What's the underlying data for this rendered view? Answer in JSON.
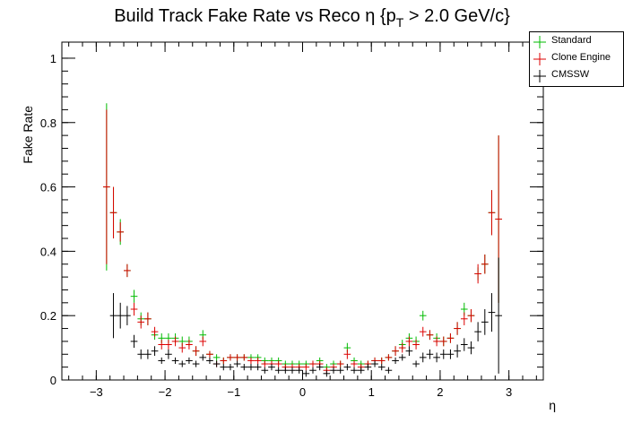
{
  "chart_data": {
    "type": "scatter",
    "title": "Build Track Fake Rate vs Reco η {p",
    "title_sub": "T",
    "title_tail": " > 2.0 GeV/c}",
    "xlabel": "η",
    "ylabel": "Fake Rate",
    "xlim": [
      -3.5,
      3.5
    ],
    "ylim": [
      0,
      1.05
    ],
    "xticks": [
      -3,
      -2,
      -1,
      0,
      1,
      2,
      3
    ],
    "xtick_labels": [
      "−3",
      "−2",
      "−1",
      "0",
      "1",
      "2",
      "3"
    ],
    "yticks": [
      0,
      0.2,
      0.4,
      0.6,
      0.8,
      1
    ],
    "ytick_labels": [
      "0",
      "0.2",
      "0.4",
      "0.6",
      "0.8",
      "1"
    ],
    "bin_half_width": 0.05,
    "legend_position": "top-right",
    "series": [
      {
        "name": "Standard",
        "color": "#00bb00",
        "points": [
          [
            -2.85,
            0.6,
            0.26
          ],
          [
            -2.75,
            0.52,
            0.08
          ],
          [
            -2.65,
            0.46,
            0.04
          ],
          [
            -2.55,
            0.34,
            0.02
          ],
          [
            -2.45,
            0.26,
            0.02
          ],
          [
            -2.35,
            0.19,
            0.02
          ],
          [
            -2.25,
            0.19,
            0.02
          ],
          [
            -2.15,
            0.14,
            0.015
          ],
          [
            -2.05,
            0.13,
            0.015
          ],
          [
            -1.95,
            0.13,
            0.015
          ],
          [
            -1.85,
            0.13,
            0.015
          ],
          [
            -1.75,
            0.12,
            0.015
          ],
          [
            -1.65,
            0.12,
            0.015
          ],
          [
            -1.55,
            0.09,
            0.015
          ],
          [
            -1.45,
            0.14,
            0.015
          ],
          [
            -1.35,
            0.08,
            0.01
          ],
          [
            -1.25,
            0.07,
            0.01
          ],
          [
            -1.15,
            0.06,
            0.01
          ],
          [
            -1.05,
            0.07,
            0.01
          ],
          [
            -0.95,
            0.07,
            0.01
          ],
          [
            -0.85,
            0.07,
            0.01
          ],
          [
            -0.75,
            0.07,
            0.01
          ],
          [
            -0.65,
            0.07,
            0.01
          ],
          [
            -0.55,
            0.06,
            0.01
          ],
          [
            -0.45,
            0.06,
            0.01
          ],
          [
            -0.35,
            0.06,
            0.01
          ],
          [
            -0.25,
            0.05,
            0.01
          ],
          [
            -0.15,
            0.05,
            0.01
          ],
          [
            -0.05,
            0.05,
            0.01
          ],
          [
            0.05,
            0.05,
            0.01
          ],
          [
            0.15,
            0.05,
            0.01
          ],
          [
            0.25,
            0.06,
            0.01
          ],
          [
            0.35,
            0.04,
            0.01
          ],
          [
            0.45,
            0.05,
            0.01
          ],
          [
            0.55,
            0.05,
            0.01
          ],
          [
            0.65,
            0.1,
            0.015
          ],
          [
            0.75,
            0.06,
            0.01
          ],
          [
            0.85,
            0.05,
            0.01
          ],
          [
            0.95,
            0.05,
            0.01
          ],
          [
            1.05,
            0.06,
            0.01
          ],
          [
            1.15,
            0.06,
            0.01
          ],
          [
            1.25,
            0.07,
            0.01
          ],
          [
            1.35,
            0.09,
            0.015
          ],
          [
            1.45,
            0.11,
            0.015
          ],
          [
            1.55,
            0.13,
            0.015
          ],
          [
            1.65,
            0.12,
            0.015
          ],
          [
            1.75,
            0.2,
            0.015
          ],
          [
            1.85,
            0.14,
            0.015
          ],
          [
            1.95,
            0.13,
            0.015
          ],
          [
            2.05,
            0.12,
            0.015
          ],
          [
            2.15,
            0.13,
            0.015
          ],
          [
            2.25,
            0.16,
            0.02
          ],
          [
            2.35,
            0.22,
            0.02
          ],
          [
            2.45,
            0.2,
            0.02
          ],
          [
            2.55,
            0.33,
            0.02
          ],
          [
            2.65,
            0.36,
            0.03
          ],
          [
            2.75,
            0.52,
            0.07
          ],
          [
            2.85,
            0.5,
            0.26
          ]
        ]
      },
      {
        "name": "Clone Engine",
        "color": "#dd0000",
        "points": [
          [
            -2.85,
            0.6,
            0.24
          ],
          [
            -2.75,
            0.52,
            0.08
          ],
          [
            -2.65,
            0.46,
            0.03
          ],
          [
            -2.55,
            0.34,
            0.02
          ],
          [
            -2.45,
            0.22,
            0.02
          ],
          [
            -2.35,
            0.18,
            0.02
          ],
          [
            -2.25,
            0.19,
            0.02
          ],
          [
            -2.15,
            0.15,
            0.015
          ],
          [
            -2.05,
            0.11,
            0.015
          ],
          [
            -1.95,
            0.11,
            0.015
          ],
          [
            -1.85,
            0.12,
            0.015
          ],
          [
            -1.75,
            0.1,
            0.015
          ],
          [
            -1.65,
            0.11,
            0.015
          ],
          [
            -1.55,
            0.09,
            0.015
          ],
          [
            -1.45,
            0.12,
            0.015
          ],
          [
            -1.35,
            0.08,
            0.01
          ],
          [
            -1.25,
            0.05,
            0.01
          ],
          [
            -1.15,
            0.06,
            0.01
          ],
          [
            -1.05,
            0.07,
            0.01
          ],
          [
            -0.95,
            0.07,
            0.01
          ],
          [
            -0.85,
            0.07,
            0.01
          ],
          [
            -0.75,
            0.06,
            0.01
          ],
          [
            -0.65,
            0.06,
            0.01
          ],
          [
            -0.55,
            0.05,
            0.01
          ],
          [
            -0.45,
            0.05,
            0.01
          ],
          [
            -0.35,
            0.05,
            0.01
          ],
          [
            -0.25,
            0.04,
            0.01
          ],
          [
            -0.15,
            0.04,
            0.01
          ],
          [
            -0.05,
            0.04,
            0.01
          ],
          [
            0.05,
            0.04,
            0.01
          ],
          [
            0.15,
            0.05,
            0.01
          ],
          [
            0.25,
            0.05,
            0.01
          ],
          [
            0.35,
            0.03,
            0.01
          ],
          [
            0.45,
            0.04,
            0.01
          ],
          [
            0.55,
            0.05,
            0.01
          ],
          [
            0.65,
            0.08,
            0.015
          ],
          [
            0.75,
            0.05,
            0.01
          ],
          [
            0.85,
            0.04,
            0.01
          ],
          [
            0.95,
            0.05,
            0.01
          ],
          [
            1.05,
            0.06,
            0.01
          ],
          [
            1.15,
            0.06,
            0.01
          ],
          [
            1.25,
            0.07,
            0.01
          ],
          [
            1.35,
            0.09,
            0.015
          ],
          [
            1.45,
            0.1,
            0.015
          ],
          [
            1.55,
            0.12,
            0.015
          ],
          [
            1.65,
            0.11,
            0.015
          ],
          [
            1.75,
            0.15,
            0.015
          ],
          [
            1.85,
            0.14,
            0.015
          ],
          [
            1.95,
            0.12,
            0.015
          ],
          [
            2.05,
            0.12,
            0.015
          ],
          [
            2.15,
            0.13,
            0.015
          ],
          [
            2.25,
            0.16,
            0.02
          ],
          [
            2.35,
            0.19,
            0.02
          ],
          [
            2.45,
            0.2,
            0.02
          ],
          [
            2.55,
            0.33,
            0.03
          ],
          [
            2.65,
            0.36,
            0.03
          ],
          [
            2.75,
            0.52,
            0.07
          ],
          [
            2.85,
            0.5,
            0.26
          ]
        ]
      },
      {
        "name": "CMSSW",
        "color": "#000000",
        "points": [
          [
            -2.75,
            0.2,
            0.07
          ],
          [
            -2.65,
            0.2,
            0.04
          ],
          [
            -2.55,
            0.2,
            0.03
          ],
          [
            -2.45,
            0.12,
            0.02
          ],
          [
            -2.35,
            0.08,
            0.015
          ],
          [
            -2.25,
            0.08,
            0.015
          ],
          [
            -2.15,
            0.09,
            0.015
          ],
          [
            -2.05,
            0.06,
            0.01
          ],
          [
            -1.95,
            0.08,
            0.015
          ],
          [
            -1.85,
            0.06,
            0.01
          ],
          [
            -1.75,
            0.05,
            0.01
          ],
          [
            -1.65,
            0.06,
            0.01
          ],
          [
            -1.55,
            0.05,
            0.01
          ],
          [
            -1.45,
            0.07,
            0.01
          ],
          [
            -1.35,
            0.06,
            0.01
          ],
          [
            -1.25,
            0.05,
            0.01
          ],
          [
            -1.15,
            0.04,
            0.01
          ],
          [
            -1.05,
            0.04,
            0.01
          ],
          [
            -0.95,
            0.05,
            0.01
          ],
          [
            -0.85,
            0.04,
            0.01
          ],
          [
            -0.75,
            0.04,
            0.01
          ],
          [
            -0.65,
            0.04,
            0.01
          ],
          [
            -0.55,
            0.03,
            0.01
          ],
          [
            -0.45,
            0.04,
            0.01
          ],
          [
            -0.35,
            0.03,
            0.01
          ],
          [
            -0.25,
            0.03,
            0.01
          ],
          [
            -0.15,
            0.03,
            0.01
          ],
          [
            -0.05,
            0.03,
            0.01
          ],
          [
            0.05,
            0.02,
            0.01
          ],
          [
            0.15,
            0.03,
            0.01
          ],
          [
            0.25,
            0.04,
            0.01
          ],
          [
            0.35,
            0.02,
            0.01
          ],
          [
            0.45,
            0.03,
            0.01
          ],
          [
            0.55,
            0.03,
            0.01
          ],
          [
            0.65,
            0.04,
            0.01
          ],
          [
            0.75,
            0.03,
            0.01
          ],
          [
            0.85,
            0.03,
            0.01
          ],
          [
            0.95,
            0.04,
            0.01
          ],
          [
            1.05,
            0.05,
            0.01
          ],
          [
            1.15,
            0.04,
            0.01
          ],
          [
            1.25,
            0.03,
            0.01
          ],
          [
            1.35,
            0.06,
            0.01
          ],
          [
            1.45,
            0.07,
            0.01
          ],
          [
            1.55,
            0.09,
            0.015
          ],
          [
            1.65,
            0.05,
            0.01
          ],
          [
            1.75,
            0.07,
            0.015
          ],
          [
            1.85,
            0.08,
            0.015
          ],
          [
            1.95,
            0.07,
            0.015
          ],
          [
            2.05,
            0.08,
            0.015
          ],
          [
            2.15,
            0.08,
            0.015
          ],
          [
            2.25,
            0.09,
            0.02
          ],
          [
            2.35,
            0.11,
            0.02
          ],
          [
            2.45,
            0.1,
            0.02
          ],
          [
            2.55,
            0.15,
            0.03
          ],
          [
            2.65,
            0.18,
            0.04
          ],
          [
            2.75,
            0.21,
            0.06
          ],
          [
            2.85,
            0.2,
            0.18
          ]
        ]
      }
    ]
  }
}
